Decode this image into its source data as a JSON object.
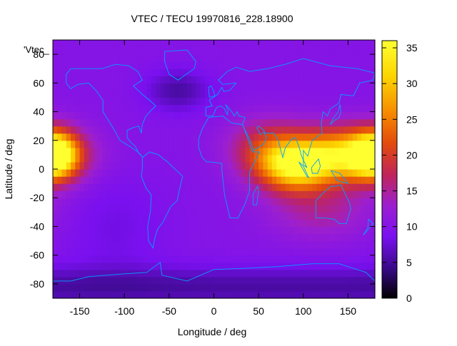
{
  "chart_data": {
    "type": "heatmap",
    "title": "VTEC / TECU 19970816_228.18900",
    "xlabel": "Longitude / deg",
    "ylabel": "Latitude / deg",
    "xlim": [
      -180,
      180
    ],
    "ylim": [
      -90,
      90
    ],
    "x_ticks": [
      -150,
      -100,
      -50,
      0,
      50,
      100,
      150
    ],
    "y_ticks": [
      -80,
      -60,
      -40,
      -20,
      0,
      20,
      40,
      60,
      80
    ],
    "legend_label": "'Vtec_",
    "colorbar": {
      "range": [
        0,
        36
      ],
      "ticks": [
        0,
        5,
        10,
        15,
        20,
        25,
        30,
        35
      ],
      "colormap": [
        "#000000",
        "#3b0a8c",
        "#7a10f0",
        "#9c1fd0",
        "#c0255a",
        "#e24a0c",
        "#f68a00",
        "#fcd400",
        "#ffff30"
      ]
    },
    "peaks": [
      {
        "lon": -175,
        "lat": 10,
        "value": 33
      },
      {
        "lon": 95,
        "lat": 0,
        "value": 32
      },
      {
        "lon": 160,
        "lat": 10,
        "value": 33
      }
    ],
    "axis_color": "#000000",
    "coastline_color": "#00a0ff"
  }
}
